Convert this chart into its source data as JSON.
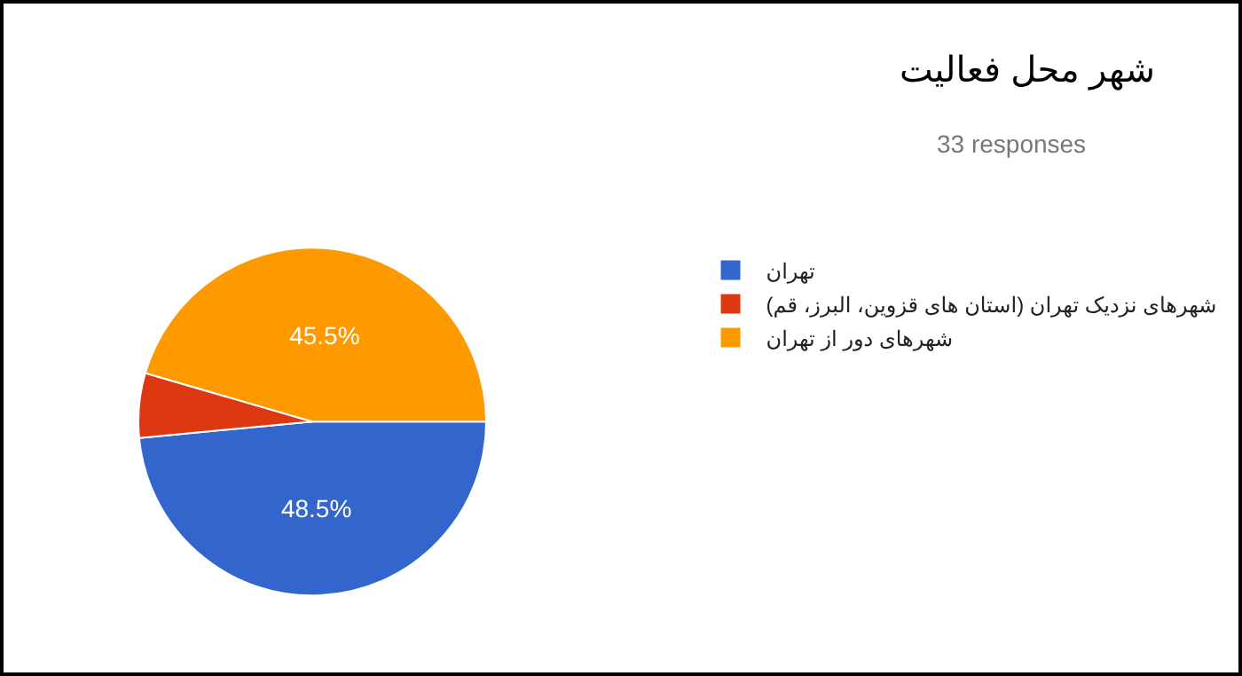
{
  "chart_data": {
    "type": "pie",
    "title": "شهر محل فعالیت",
    "subtitle": "33 responses",
    "categories": [
      "تهران",
      "شهرهای نزدیک تهران (استان های قزوین، البرز، قم)",
      "شهرهای دور از تهران"
    ],
    "values": [
      48.5,
      6,
      45.5
    ],
    "colors": [
      "#3366cc",
      "#dc3912",
      "#ff9900"
    ],
    "value_labels": [
      "48.5%",
      null,
      "45.5%"
    ],
    "legend": "right"
  }
}
